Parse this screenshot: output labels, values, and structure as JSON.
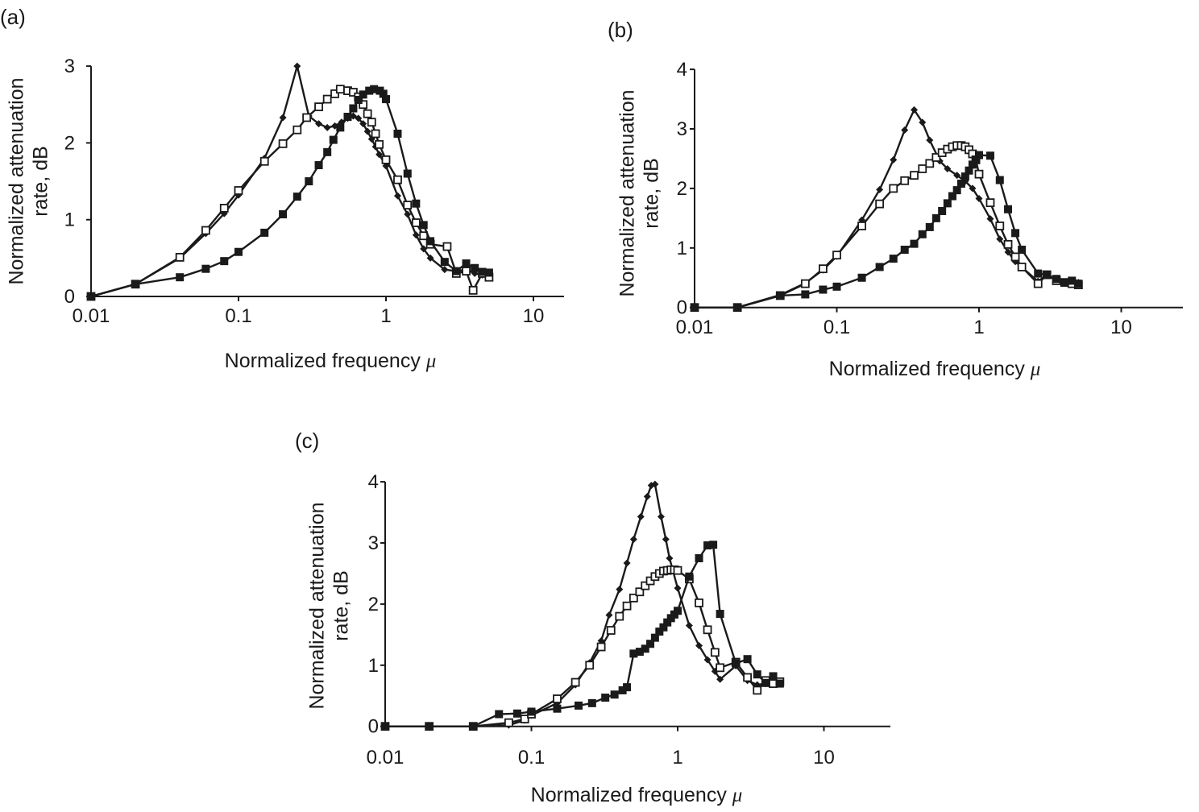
{
  "chart_data": [
    {
      "panel_label": "(a)",
      "type": "line",
      "xlabel": "Normalized frequency",
      "xlabel_symbol": "μ",
      "ylabel_lines": [
        "Normalized attenuation",
        "rate, dB"
      ],
      "xscale": "log",
      "xlim": [
        0.01,
        10
      ],
      "ylim": [
        0,
        3
      ],
      "xticks": [
        "0.01",
        "0.1",
        "1",
        "10"
      ],
      "yticks": [
        "0",
        "1",
        "2",
        "3"
      ],
      "grid": false,
      "series": [
        {
          "marker": "diamond",
          "color": "#1a1a1a",
          "x": [
            0.01,
            0.02,
            0.04,
            0.06,
            0.08,
            0.1,
            0.15,
            0.2,
            0.25,
            0.3,
            0.35,
            0.4,
            0.45,
            0.5,
            0.55,
            0.6,
            0.65,
            0.7,
            0.75,
            0.8,
            0.85,
            0.9,
            1.0,
            1.2,
            1.4,
            1.6,
            1.8,
            2.0,
            2.5,
            3,
            3.5,
            4,
            4.5,
            5
          ],
          "y": [
            0,
            0.16,
            0.5,
            0.82,
            1.08,
            1.32,
            1.8,
            2.33,
            3.0,
            2.35,
            2.25,
            2.2,
            2.22,
            2.27,
            2.32,
            2.35,
            2.32,
            2.25,
            2.15,
            2.05,
            1.95,
            1.85,
            1.7,
            1.31,
            1.07,
            0.8,
            0.62,
            0.5,
            0.35,
            0.33,
            0.35,
            0.3,
            0.28,
            0.27
          ]
        },
        {
          "marker": "open-square",
          "color": "#1a1a1a",
          "x": [
            0.01,
            0.02,
            0.04,
            0.06,
            0.08,
            0.1,
            0.15,
            0.2,
            0.25,
            0.29,
            0.35,
            0.4,
            0.45,
            0.49,
            0.55,
            0.6,
            0.65,
            0.7,
            0.75,
            0.8,
            0.85,
            0.9,
            1.0,
            1.2,
            1.4,
            1.6,
            1.8,
            2.0,
            2.6,
            3,
            3.5,
            3.9,
            4.5,
            5
          ],
          "y": [
            0,
            0.16,
            0.51,
            0.86,
            1.15,
            1.38,
            1.76,
            1.99,
            2.17,
            2.33,
            2.47,
            2.57,
            2.64,
            2.7,
            2.68,
            2.66,
            2.6,
            2.5,
            2.38,
            2.27,
            2.12,
            1.98,
            1.78,
            1.52,
            1.19,
            0.96,
            0.79,
            0.68,
            0.65,
            0.3,
            0.33,
            0.08,
            0.3,
            0.25
          ]
        },
        {
          "marker": "filled-square",
          "color": "#1a1a1a",
          "x": [
            0.01,
            0.02,
            0.04,
            0.06,
            0.08,
            0.1,
            0.15,
            0.2,
            0.25,
            0.3,
            0.35,
            0.4,
            0.44,
            0.49,
            0.55,
            0.6,
            0.65,
            0.7,
            0.77,
            0.83,
            0.91,
            0.96,
            1.0,
            1.2,
            1.4,
            1.6,
            1.8,
            2.0,
            2.5,
            3.0,
            3.5,
            4.0,
            4.5,
            5.0
          ],
          "y": [
            0,
            0.16,
            0.25,
            0.36,
            0.46,
            0.58,
            0.83,
            1.07,
            1.3,
            1.5,
            1.71,
            1.88,
            2.04,
            2.2,
            2.34,
            2.45,
            2.56,
            2.63,
            2.68,
            2.7,
            2.68,
            2.64,
            2.57,
            2.12,
            1.6,
            1.21,
            0.93,
            0.72,
            0.45,
            0.33,
            0.43,
            0.37,
            0.32,
            0.31
          ]
        }
      ]
    },
    {
      "panel_label": "(b)",
      "type": "line",
      "xlabel": "Normalized frequency",
      "xlabel_symbol": "μ",
      "ylabel_lines": [
        "Normalized attenuation",
        "rate, dB"
      ],
      "xscale": "log",
      "xlim": [
        0.01,
        10
      ],
      "ylim": [
        0,
        4
      ],
      "xticks": [
        "0.01",
        "0.1",
        "1",
        "10"
      ],
      "yticks": [
        "0",
        "1",
        "2",
        "3",
        "4"
      ],
      "grid": false,
      "series": [
        {
          "marker": "diamond",
          "color": "#1a1a1a",
          "x": [
            0.01,
            0.02,
            0.04,
            0.06,
            0.08,
            0.1,
            0.15,
            0.2,
            0.25,
            0.3,
            0.35,
            0.4,
            0.45,
            0.53,
            0.6,
            0.7,
            0.8,
            0.9,
            1.0,
            1.2,
            1.4,
            1.6,
            1.8,
            2.6,
            3,
            3.5,
            4,
            4.5,
            5
          ],
          "y": [
            0,
            0,
            0.21,
            0.41,
            0.63,
            0.86,
            1.47,
            1.98,
            2.48,
            2.98,
            3.32,
            3.11,
            2.81,
            2.46,
            2.33,
            2.22,
            2.12,
            2.0,
            1.83,
            1.49,
            1.15,
            0.93,
            0.77,
            0.44,
            0.55,
            0.48,
            0.42,
            0.45,
            0.42
          ]
        },
        {
          "marker": "open-square",
          "color": "#1a1a1a",
          "x": [
            0.01,
            0.02,
            0.04,
            0.06,
            0.08,
            0.1,
            0.15,
            0.2,
            0.25,
            0.3,
            0.35,
            0.4,
            0.45,
            0.5,
            0.55,
            0.6,
            0.65,
            0.7,
            0.75,
            0.8,
            0.85,
            0.9,
            0.95,
            1.0,
            1.2,
            1.4,
            1.6,
            1.8,
            2.0,
            2.6,
            3,
            3.5,
            4,
            4.5,
            5
          ],
          "y": [
            0,
            0,
            0.2,
            0.4,
            0.65,
            0.88,
            1.37,
            1.74,
            2.0,
            2.13,
            2.22,
            2.33,
            2.42,
            2.52,
            2.6,
            2.66,
            2.7,
            2.72,
            2.72,
            2.7,
            2.65,
            2.58,
            2.48,
            2.24,
            1.76,
            1.37,
            1.06,
            0.85,
            0.68,
            0.4,
            0.55,
            0.45,
            0.42,
            0.4,
            0.38
          ]
        },
        {
          "marker": "filled-square",
          "color": "#1a1a1a",
          "x": [
            0.01,
            0.02,
            0.04,
            0.06,
            0.08,
            0.1,
            0.15,
            0.2,
            0.25,
            0.3,
            0.35,
            0.4,
            0.45,
            0.5,
            0.55,
            0.6,
            0.65,
            0.7,
            0.75,
            0.8,
            0.85,
            0.9,
            0.95,
            1.0,
            1.2,
            1.4,
            1.6,
            1.8,
            2.0,
            2.6,
            3,
            3.5,
            4,
            4.5,
            5
          ],
          "y": [
            0,
            0,
            0.2,
            0.22,
            0.3,
            0.35,
            0.5,
            0.68,
            0.82,
            0.97,
            1.07,
            1.23,
            1.35,
            1.5,
            1.62,
            1.75,
            1.87,
            1.97,
            2.08,
            2.2,
            2.3,
            2.4,
            2.48,
            2.56,
            2.55,
            2.14,
            1.65,
            1.25,
            0.97,
            0.57,
            0.55,
            0.48,
            0.42,
            0.45,
            0.4
          ]
        }
      ]
    },
    {
      "panel_label": "(c)",
      "type": "line",
      "xlabel": "Normalized frequency",
      "xlabel_symbol": "μ",
      "ylabel_lines": [
        "Normalized attenuation",
        "rate, dB"
      ],
      "xscale": "log",
      "xlim": [
        0.01,
        10
      ],
      "ylim": [
        0,
        4
      ],
      "xticks": [
        "0.01",
        "0.1",
        "1",
        "10"
      ],
      "yticks": [
        "0",
        "1",
        "2",
        "3",
        "4"
      ],
      "grid": false,
      "series": [
        {
          "marker": "diamond",
          "color": "#1a1a1a",
          "x": [
            0.01,
            0.02,
            0.04,
            0.07,
            0.09,
            0.1,
            0.15,
            0.2,
            0.25,
            0.3,
            0.34,
            0.4,
            0.45,
            0.5,
            0.56,
            0.62,
            0.66,
            0.7,
            0.77,
            0.83,
            0.88,
            1.0,
            1.2,
            1.4,
            1.6,
            1.8,
            1.95,
            2.5,
            3,
            3.5,
            4,
            4.5,
            5
          ],
          "y": [
            0,
            0,
            0,
            0.02,
            0.1,
            0.18,
            0.38,
            0.68,
            1.04,
            1.4,
            1.82,
            2.24,
            2.67,
            3.06,
            3.43,
            3.76,
            3.94,
            3.96,
            3.43,
            3.06,
            2.75,
            2.26,
            1.65,
            1.32,
            1.09,
            0.9,
            0.77,
            0.99,
            0.75,
            0.68,
            0.7,
            0.75,
            0.73
          ]
        },
        {
          "marker": "open-square",
          "color": "#1a1a1a",
          "x": [
            0.01,
            0.02,
            0.04,
            0.07,
            0.09,
            0.1,
            0.15,
            0.2,
            0.25,
            0.3,
            0.35,
            0.4,
            0.45,
            0.5,
            0.55,
            0.6,
            0.65,
            0.7,
            0.75,
            0.8,
            0.85,
            0.9,
            0.95,
            1.0,
            1.2,
            1.4,
            1.6,
            1.8,
            1.95,
            2.5,
            3,
            3.5,
            4,
            4.5,
            5
          ],
          "y": [
            0,
            0,
            0,
            0.06,
            0.12,
            0.2,
            0.45,
            0.72,
            1.0,
            1.3,
            1.57,
            1.8,
            1.97,
            2.1,
            2.2,
            2.3,
            2.38,
            2.45,
            2.5,
            2.54,
            2.55,
            2.56,
            2.56,
            2.55,
            2.41,
            2.02,
            1.58,
            1.21,
            0.96,
            1.05,
            0.8,
            0.59,
            0.75,
            0.7,
            0.73
          ]
        },
        {
          "marker": "filled-square",
          "color": "#1a1a1a",
          "x": [
            0.01,
            0.02,
            0.04,
            0.06,
            0.08,
            0.1,
            0.15,
            0.21,
            0.26,
            0.32,
            0.37,
            0.42,
            0.45,
            0.5,
            0.55,
            0.6,
            0.65,
            0.7,
            0.75,
            0.8,
            0.85,
            0.9,
            0.95,
            1.0,
            1.2,
            1.4,
            1.6,
            1.75,
            1.95,
            2.5,
            3,
            3.5,
            4,
            4.5,
            5
          ],
          "y": [
            0,
            0,
            0,
            0.2,
            0.21,
            0.24,
            0.29,
            0.34,
            0.38,
            0.47,
            0.52,
            0.59,
            0.64,
            1.19,
            1.22,
            1.27,
            1.35,
            1.45,
            1.55,
            1.62,
            1.7,
            1.77,
            1.83,
            1.89,
            2.45,
            2.75,
            2.96,
            2.97,
            1.84,
            1.03,
            1.1,
            0.85,
            0.71,
            0.82,
            0.7
          ]
        }
      ]
    }
  ]
}
